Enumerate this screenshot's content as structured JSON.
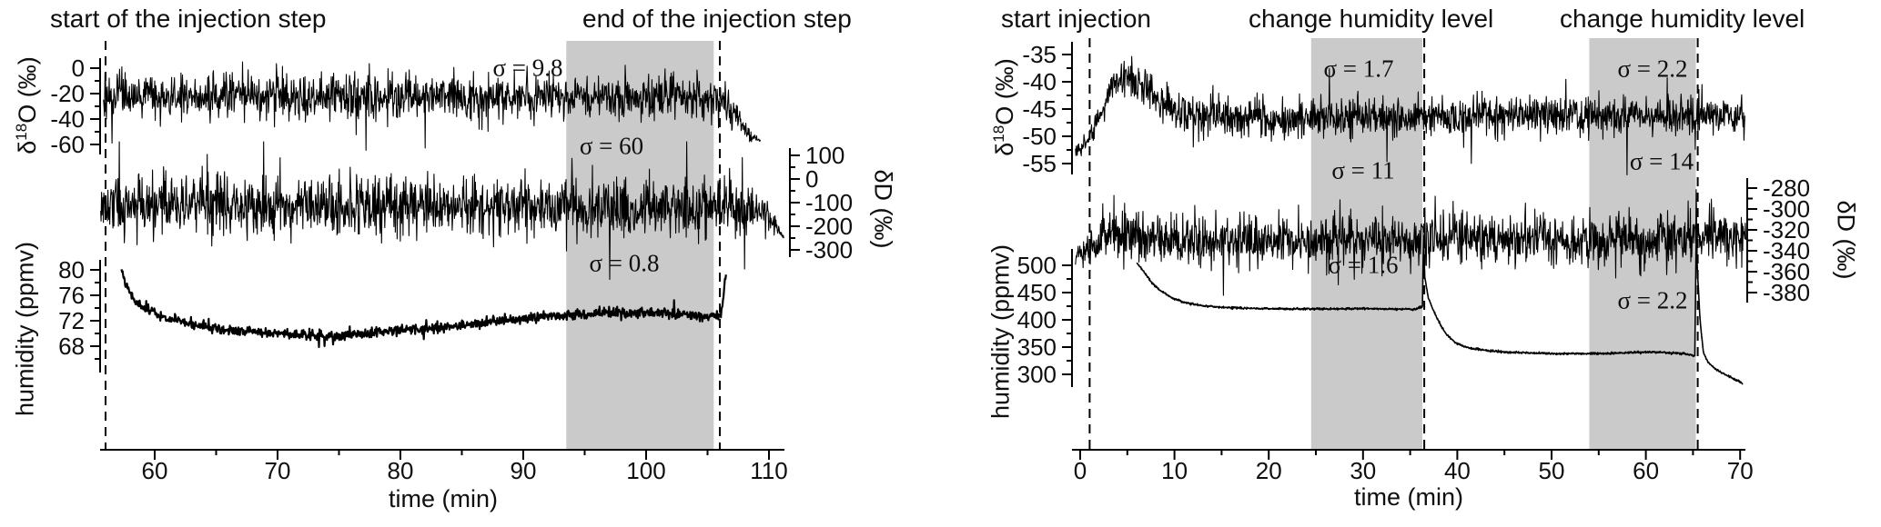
{
  "figure": {
    "bg": "#ffffff",
    "trace_color": "#000000",
    "band_color": "#cacaca",
    "axis_color": "#000000",
    "text_color": "#0f0f0f"
  },
  "chart_data": [
    {
      "id": "left-panel",
      "type": "line",
      "xlabel": "time (min)",
      "xlim": [
        55.4,
        111.4
      ],
      "xticks": [
        60,
        70,
        80,
        90,
        100,
        110
      ],
      "xminor": [
        65,
        75,
        85,
        95,
        105
      ],
      "annotations": [
        {
          "text": "start of the injection step",
          "t": 56
        },
        {
          "text": "end of the injection step",
          "t": 106
        }
      ],
      "event_lines_t": [
        56,
        106
      ],
      "shaded_regions_t": [
        [
          93.5,
          105.5
        ]
      ],
      "sigma_labels": [
        {
          "text": "σ = 9.8",
          "series": "d18O"
        },
        {
          "text": "σ = 60",
          "series": "dD"
        },
        {
          "text": "σ = 0.8",
          "series": "humidity"
        }
      ],
      "subplots": [
        {
          "name": "d18O",
          "ylabel_parts": {
            "pre": "δ",
            "sup": "18",
            "post": "O (‰)"
          },
          "axis_side": "left",
          "yticks": [
            0,
            -20,
            -40,
            -60
          ],
          "yminor": [
            -10,
            -30,
            -50
          ],
          "stated_sigma": 9.8,
          "baseline": [
            [
              55.8,
              -21
            ],
            [
              60,
              -22
            ],
            [
              70,
              -22
            ],
            [
              80,
              -22
            ],
            [
              90,
              -22
            ],
            [
              100,
              -22
            ],
            [
              105,
              -22.5
            ],
            [
              106,
              -24
            ],
            [
              106.8,
              -30
            ],
            [
              107.6,
              -42
            ],
            [
              108.4,
              -52
            ],
            [
              109.3,
              -57
            ]
          ],
          "render": {
            "sd": 8.5,
            "samples": 1400,
            "taper": [
              106.3,
              3.2
            ]
          }
        },
        {
          "name": "dD",
          "ylabel": "δD (‰)",
          "axis_side": "right",
          "yticks": [
            100,
            0,
            -100,
            -200,
            -300
          ],
          "yminor": [
            50,
            -50,
            -150,
            -250
          ],
          "stated_sigma": 60,
          "baseline": [
            [
              55.6,
              -115
            ],
            [
              60,
              -113
            ],
            [
              80,
              -116
            ],
            [
              100,
              -117
            ],
            [
              106,
              -118
            ],
            [
              108.3,
              -122
            ],
            [
              109.5,
              -140
            ],
            [
              110.6,
              -190
            ],
            [
              111.2,
              -250
            ]
          ],
          "render": {
            "sd": 62,
            "samples": 1500,
            "taper": [
              108.8,
              2.6
            ]
          }
        },
        {
          "name": "humidity",
          "ylabel": "humidity (ppmv)",
          "axis_side": "left",
          "yticks": [
            80,
            76,
            72,
            68
          ],
          "yminor": [
            78,
            74,
            70,
            66
          ],
          "stated_sigma": 0.8,
          "baseline": [
            [
              57.3,
              80.2
            ],
            [
              57.7,
              77.5
            ],
            [
              58.2,
              75.5
            ],
            [
              59,
              74
            ],
            [
              60,
              73.2
            ],
            [
              61.5,
              72.2
            ],
            [
              63,
              71.4
            ],
            [
              65,
              70.8
            ],
            [
              67,
              70.4
            ],
            [
              69,
              70.1
            ],
            [
              71,
              69.9
            ],
            [
              73,
              69.7
            ],
            [
              75,
              69.6
            ],
            [
              77,
              69.9
            ],
            [
              79,
              70.3
            ],
            [
              81,
              70.6
            ],
            [
              83,
              70.9
            ],
            [
              85,
              71.3
            ],
            [
              87,
              71.7
            ],
            [
              89,
              72.1
            ],
            [
              91,
              72.5
            ],
            [
              93,
              72.8
            ],
            [
              95,
              73.0
            ],
            [
              97,
              73.2
            ],
            [
              99,
              73.3
            ],
            [
              101,
              73.2
            ],
            [
              103,
              73.0
            ],
            [
              104.5,
              72.8
            ],
            [
              105.8,
              72.7
            ],
            [
              106.15,
              73.5
            ],
            [
              106.5,
              79.8
            ]
          ],
          "render": {
            "sd": 0.38,
            "samples": 1200
          }
        }
      ]
    },
    {
      "id": "right-panel",
      "type": "line",
      "xlabel": "time (min)",
      "xlim": [
        -1,
        70.8
      ],
      "xticks": [
        0,
        10,
        20,
        30,
        40,
        50,
        60,
        70
      ],
      "xminor": [
        5,
        15,
        25,
        35,
        45,
        55,
        65
      ],
      "annotations": [
        {
          "text": "start injection",
          "t": 1
        },
        {
          "text": "change humidity level",
          "t": 36.5
        },
        {
          "text": "change humidity level",
          "t": 65.5
        }
      ],
      "event_lines_t": [
        1,
        36.5,
        65.5
      ],
      "shaded_regions_t": [
        [
          24.5,
          36.3
        ],
        [
          54,
          65.3
        ]
      ],
      "sigma_labels": [
        {
          "text": "σ = 1.7",
          "series": "d18O"
        },
        {
          "text": "σ = 2.2",
          "series": "d18O"
        },
        {
          "text": "σ = 11",
          "series": "dD"
        },
        {
          "text": "σ = 14",
          "series": "dD"
        },
        {
          "text": "σ = 1.6",
          "series": "humidity"
        },
        {
          "text": "σ = 2.2",
          "series": "humidity"
        }
      ],
      "subplots": [
        {
          "name": "d18O",
          "ylabel_parts": {
            "pre": "δ",
            "sup": "18",
            "post": "O (‰)"
          },
          "axis_side": "left",
          "yticks": [
            -35,
            -40,
            -45,
            -50,
            -55
          ],
          "yminor": [
            -37.5,
            -42.5,
            -47.5,
            -52.5
          ],
          "baseline": [
            [
              -0.5,
              -52.5
            ],
            [
              0.6,
              -51.5
            ],
            [
              1.4,
              -49
            ],
            [
              2.4,
              -44.5
            ],
            [
              3.4,
              -40.5
            ],
            [
              4.3,
              -38.8
            ],
            [
              5,
              -38.5
            ],
            [
              5.8,
              -39.3
            ],
            [
              6.8,
              -41
            ],
            [
              8,
              -43
            ],
            [
              9.5,
              -44.8
            ],
            [
              11,
              -45.8
            ],
            [
              13,
              -46.5
            ],
            [
              16,
              -46.8
            ],
            [
              22,
              -46.8
            ],
            [
              30,
              -46.6
            ],
            [
              38,
              -46.4
            ],
            [
              46,
              -46.2
            ],
            [
              54,
              -46.1
            ],
            [
              62,
              -46
            ],
            [
              70.5,
              -46
            ]
          ],
          "render": {
            "sd": 1.75,
            "samples": 1500,
            "ramp": [
              5,
              0.35
            ]
          }
        },
        {
          "name": "dD",
          "ylabel": "δD (‰)",
          "axis_side": "right",
          "yticks": [
            -280,
            -300,
            -320,
            -340,
            -360,
            -380
          ],
          "yminor": [
            -290,
            -310,
            -330,
            -350,
            -370
          ],
          "baseline": [
            [
              -0.5,
              -345
            ],
            [
              0.8,
              -340
            ],
            [
              1.8,
              -334
            ],
            [
              3,
              -327
            ],
            [
              4.2,
              -322
            ],
            [
              5.5,
              -322
            ],
            [
              7,
              -325
            ],
            [
              9,
              -328
            ],
            [
              11.5,
              -331
            ],
            [
              14,
              -332
            ],
            [
              20,
              -332
            ],
            [
              26,
              -331
            ],
            [
              32,
              -330.5
            ],
            [
              38,
              -330
            ],
            [
              44,
              -329
            ],
            [
              50,
              -328.5
            ],
            [
              56,
              -328
            ],
            [
              62,
              -327.5
            ],
            [
              70.6,
              -327
            ]
          ],
          "render": {
            "sd": 12,
            "samples": 1500,
            "ramp": [
              4,
              0.4
            ]
          }
        },
        {
          "name": "humidity",
          "ylabel": "humidity (ppmv)",
          "axis_side": "left",
          "yticks": [
            500,
            450,
            400,
            350,
            300
          ],
          "yminor": [
            475,
            425,
            375,
            325
          ],
          "baseline": [
            [
              6,
              505
            ],
            [
              6.6,
              492
            ],
            [
              7.4,
              472
            ],
            [
              8.4,
              455
            ],
            [
              9.6,
              442
            ],
            [
              11,
              432
            ],
            [
              13,
              426
            ],
            [
              15,
              423
            ],
            [
              18,
              421
            ],
            [
              22,
              420
            ],
            [
              26,
              420
            ],
            [
              30,
              420.5
            ],
            [
              33,
              420
            ],
            [
              35.5,
              419
            ],
            [
              36.3,
              424
            ],
            [
              36.42,
              556
            ],
            [
              36.54,
              480
            ],
            [
              36.9,
              442
            ],
            [
              37.4,
              420
            ],
            [
              38,
              398
            ],
            [
              38.8,
              374
            ],
            [
              39.8,
              358
            ],
            [
              41,
              349
            ],
            [
              43,
              344
            ],
            [
              45,
              341
            ],
            [
              48,
              339
            ],
            [
              51,
              338
            ],
            [
              54,
              338
            ],
            [
              57,
              339
            ],
            [
              60,
              341
            ],
            [
              62,
              340
            ],
            [
              64,
              338
            ],
            [
              65.2,
              334
            ],
            [
              65.34,
              560
            ],
            [
              65.48,
              486
            ],
            [
              65.75,
              400
            ],
            [
              66.1,
              340
            ],
            [
              66.6,
              322
            ],
            [
              67.4,
              310
            ],
            [
              68.4,
              300
            ],
            [
              69.4,
              291
            ],
            [
              70.3,
              283
            ]
          ],
          "render": {
            "sd": 0.9,
            "samples": 1600,
            "spiky": false
          }
        }
      ]
    }
  ]
}
